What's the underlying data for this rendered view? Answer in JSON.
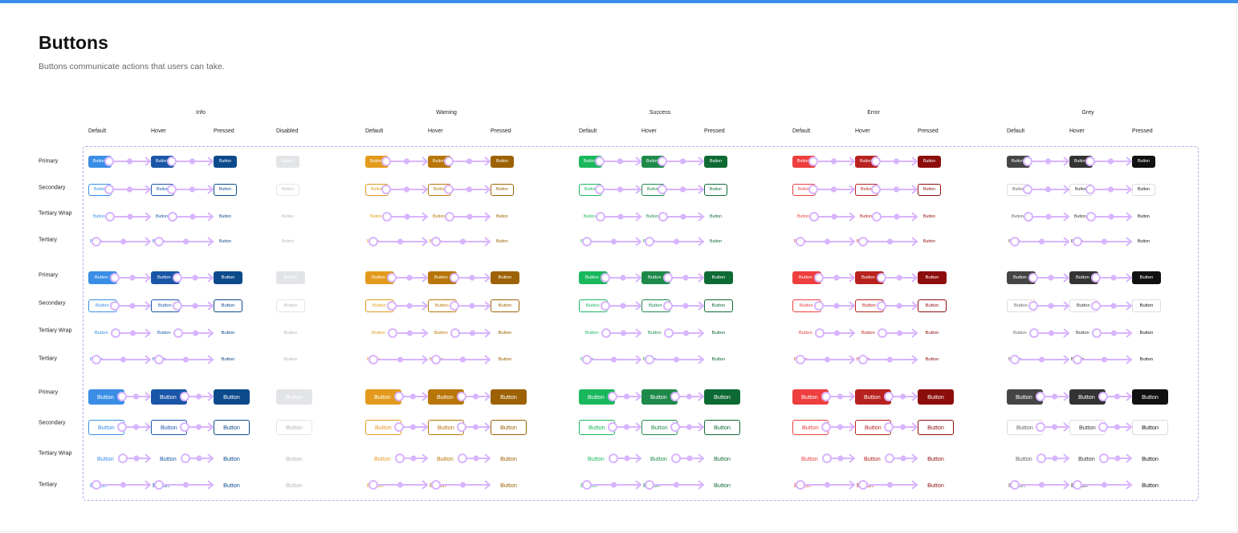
{
  "page": {
    "title": "Buttons",
    "subtitle": "Buttons communicate actions that users can take."
  },
  "colors": {
    "topbar": "#3b8fe8",
    "frame": "#b9a6ee",
    "wire": "#d8b4fe"
  },
  "row_labels": [
    "Primary",
    "Secondary",
    "Tertiary Wrap",
    "Tertiary"
  ],
  "state_labels": [
    "Default",
    "Hover",
    "Pressed",
    "Disabled"
  ],
  "button_label": "Button",
  "disabled_colors": {
    "fill": "#e2e4e7",
    "text": "#ffffff",
    "outline": "#e3e5e8",
    "muted_text": "#b4b8bd"
  },
  "groups": [
    {
      "name": "Info",
      "has_disabled": true,
      "colors": {
        "default": "#3a8ee6",
        "hover": "#1a56a8",
        "pressed": "#0c4a8c",
        "text": "#3a8ee6",
        "text_hover": "#1a56a8",
        "text_pressed": "#0c4a8c"
      }
    },
    {
      "name": "Warning",
      "has_disabled": false,
      "colors": {
        "default": "#e39a1c",
        "hover": "#b87508",
        "pressed": "#9c6205",
        "text": "#e39a1c",
        "text_hover": "#b87508",
        "text_pressed": "#9c6205"
      }
    },
    {
      "name": "Success",
      "has_disabled": false,
      "colors": {
        "default": "#19b85c",
        "hover": "#1e8a4a",
        "pressed": "#0e6a33",
        "text": "#19b85c",
        "text_hover": "#1e8a4a",
        "text_pressed": "#0e6a33"
      }
    },
    {
      "name": "Error",
      "has_disabled": false,
      "colors": {
        "default": "#ee3e3e",
        "hover": "#b8221e",
        "pressed": "#8c0e0c",
        "text": "#ee3e3e",
        "text_hover": "#b8221e",
        "text_pressed": "#8c0e0c"
      }
    },
    {
      "name": "Grey",
      "has_disabled": false,
      "colors": {
        "default": "#454545",
        "hover": "#333333",
        "pressed": "#111111",
        "text": "#666666",
        "text_hover": "#333333",
        "text_pressed": "#111111"
      }
    }
  ],
  "sizes": [
    "small",
    "medium",
    "large"
  ]
}
